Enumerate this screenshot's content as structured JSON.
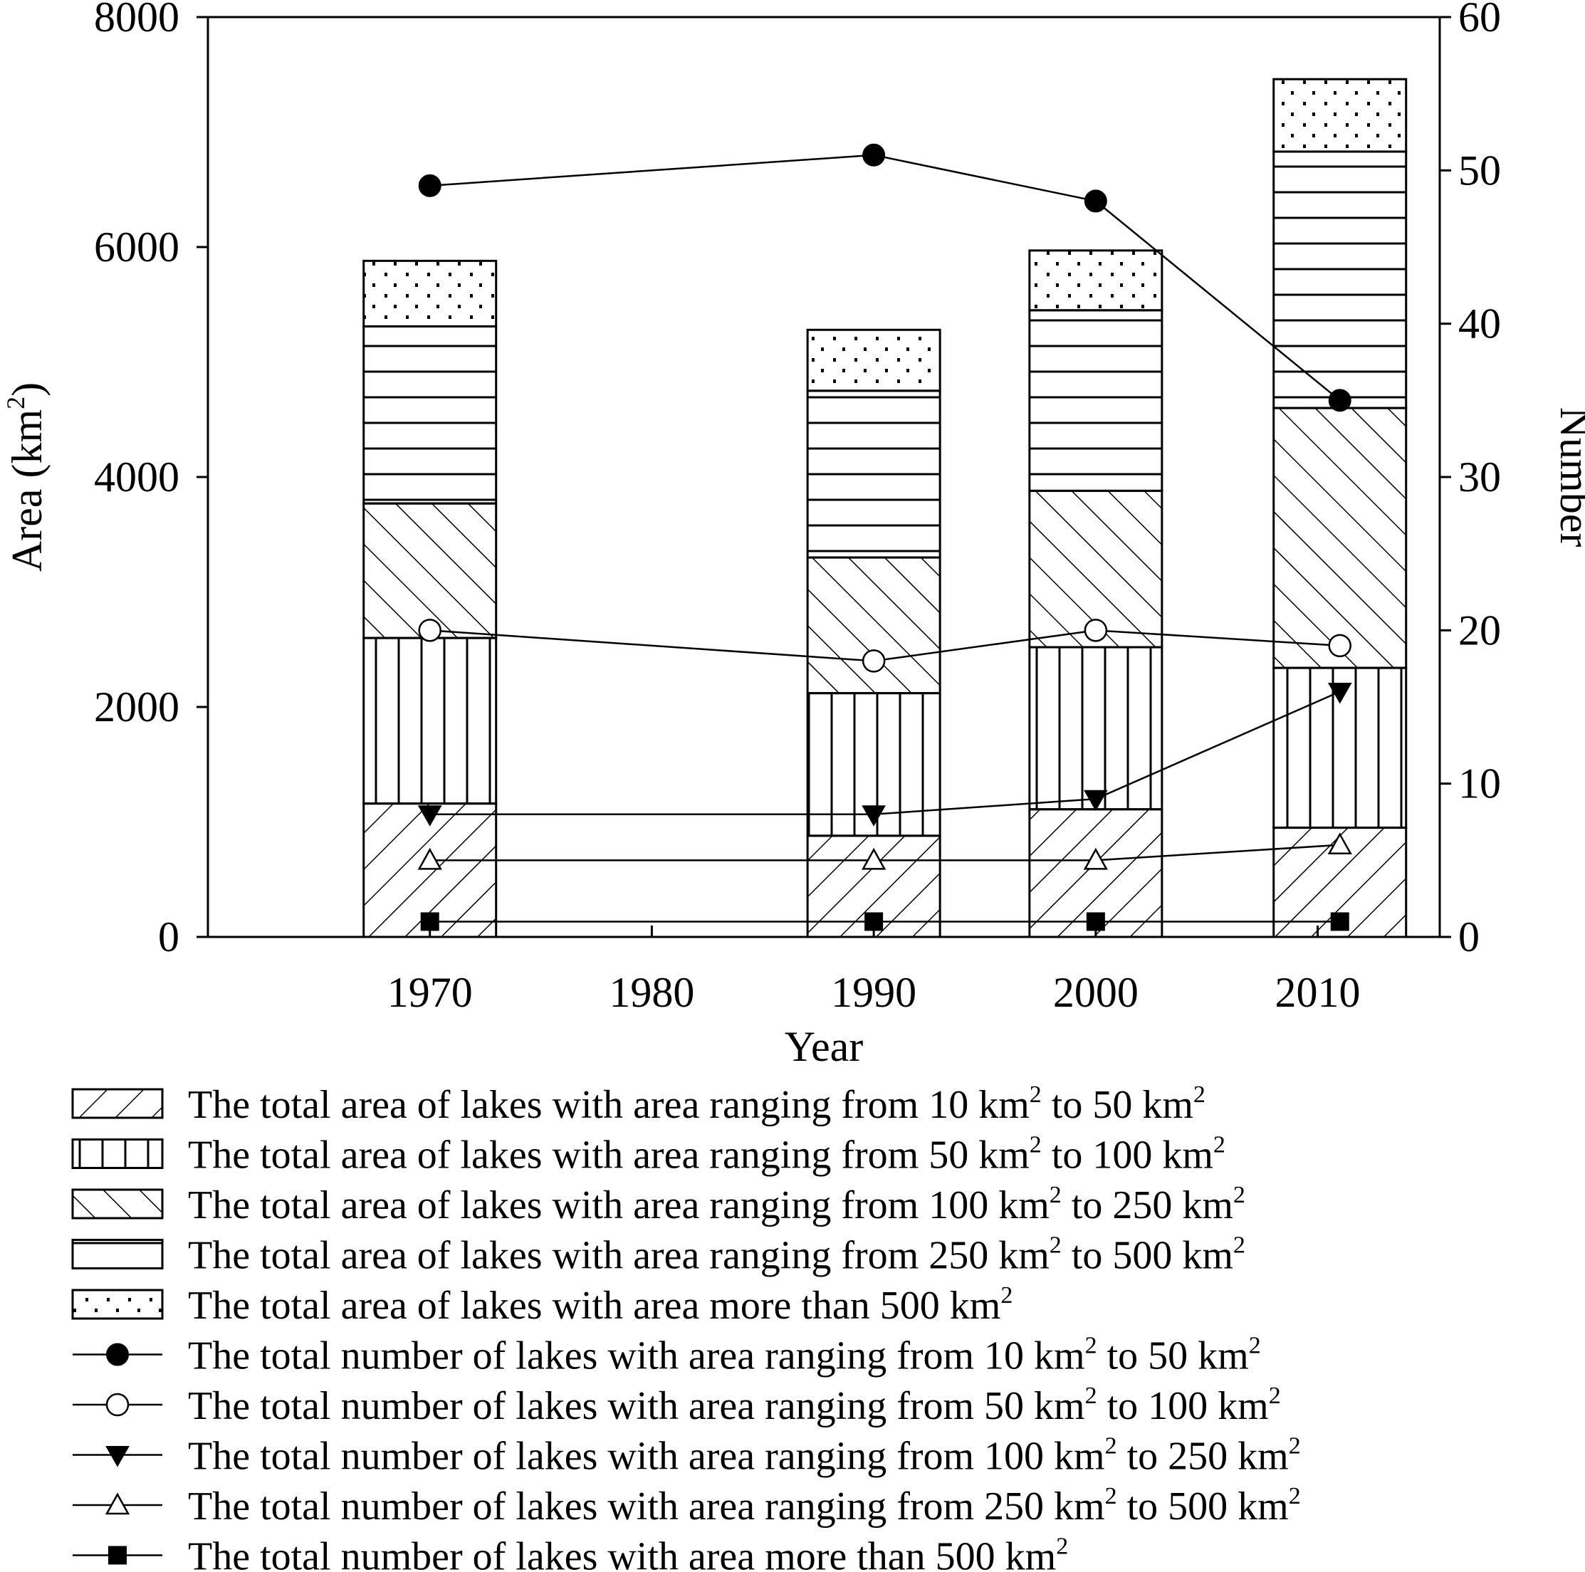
{
  "chart_data": {
    "type": "bar",
    "title": "",
    "xlabel": "Year",
    "ylabel_left": "Area (km",
    "ylabel_left_sup": "2",
    "ylabel_left_close": ")",
    "ylabel_right": "Number",
    "x_ticks": [
      "1970",
      "1980",
      "1990",
      "2000",
      "2010"
    ],
    "x_range": [
      1960,
      2015.5
    ],
    "ylim_left": [
      0,
      8000
    ],
    "ylim_right": [
      0,
      60
    ],
    "y_ticks_left": [
      "0",
      "2000",
      "4000",
      "6000",
      "8000"
    ],
    "y_ticks_right": [
      "0",
      "10",
      "20",
      "30",
      "40",
      "50",
      "60"
    ],
    "bar_x": [
      1970,
      1990,
      2000,
      2011
    ],
    "bar_series": [
      {
        "name": "The total area of lakes with area ranging from 10 km",
        "sup": "2",
        "name_tail": " to 50 km",
        "sup2": "2",
        "pattern": "diag-fwd",
        "values": [
          1160,
          880,
          1110,
          950
        ]
      },
      {
        "name": "The total area of lakes with area ranging from 50 km",
        "sup": "2",
        "name_tail": " to 100 km",
        "sup2": "2",
        "pattern": "vertical",
        "values": [
          1440,
          1240,
          1410,
          1390
        ]
      },
      {
        "name": "The total area of lakes with area ranging from 100 km",
        "sup": "2",
        "name_tail": " to 250 km",
        "sup2": "2",
        "pattern": "diag-back",
        "values": [
          1170,
          1180,
          1360,
          2260
        ]
      },
      {
        "name": "The total area of lakes with area ranging from 250 km",
        "sup": "2",
        "name_tail": " to 500 km",
        "sup2": "2",
        "pattern": "horizontal",
        "values": [
          1540,
          1450,
          1570,
          2230
        ]
      },
      {
        "name": "The total area of lakes with area more than 500 km",
        "sup": "2",
        "name_tail": "",
        "sup2": "",
        "pattern": "dots",
        "values": [
          570,
          530,
          520,
          630
        ]
      }
    ],
    "line_series": [
      {
        "name": "The total number of lakes with area ranging from 10 km",
        "sup": "2",
        "name_tail": " to 50 km",
        "sup2": "2",
        "marker": "circle-filled",
        "x": [
          1970,
          1990,
          2000,
          2011
        ],
        "values": [
          49,
          51,
          48,
          35
        ]
      },
      {
        "name": "The total number of lakes with area ranging from 50 km",
        "sup": "2",
        "name_tail": " to 100 km",
        "sup2": "2",
        "marker": "circle-open",
        "x": [
          1970,
          1990,
          2000,
          2011
        ],
        "values": [
          20,
          18,
          20,
          19
        ]
      },
      {
        "name": "The total number of lakes with area ranging from 100 km",
        "sup": "2",
        "name_tail": " to 250 km",
        "sup2": "2",
        "marker": "triangle-down-filled",
        "x": [
          1970,
          1990,
          2000,
          2011
        ],
        "values": [
          8,
          8,
          9,
          16
        ]
      },
      {
        "name": "The total number of lakes with area ranging from 250 km",
        "sup": "2",
        "name_tail": " to 500 km",
        "sup2": "2",
        "marker": "triangle-up-open",
        "x": [
          1970,
          1990,
          2000,
          2011
        ],
        "values": [
          5,
          5,
          5,
          6
        ]
      },
      {
        "name": "The total number of lakes with area more than 500 km",
        "sup": "2",
        "name_tail": "",
        "sup2": "",
        "marker": "square-filled",
        "x": [
          1970,
          1990,
          2000,
          2011
        ],
        "values": [
          1,
          1,
          1,
          1
        ]
      }
    ],
    "legend_position": "bottom",
    "grid": false
  }
}
